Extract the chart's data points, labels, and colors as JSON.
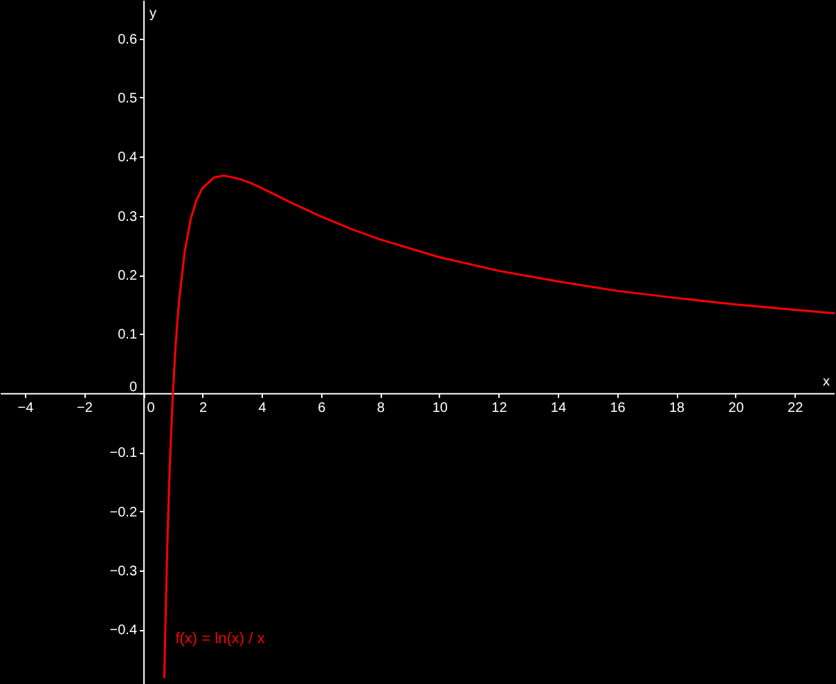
{
  "chart_data": {
    "type": "line",
    "xlabel": "x",
    "ylabel": "y",
    "x": [
      0.71,
      0.72,
      0.75,
      0.8,
      0.85,
      0.9,
      1,
      1.1,
      1.2,
      1.4,
      1.6,
      1.8,
      2,
      2.4,
      2.718,
      3.2,
      3.6,
      4,
      5,
      6,
      7,
      8,
      10,
      12,
      14,
      16,
      18,
      20,
      22,
      23.35
    ],
    "series": [
      {
        "name": "f(x) = ln(x) / x",
        "color": "#ff0000",
        "values": [
          -0.482,
          -0.456,
          -0.384,
          -0.279,
          -0.191,
          -0.117,
          0,
          0.087,
          0.152,
          0.24,
          0.294,
          0.327,
          0.347,
          0.365,
          0.368,
          0.363,
          0.356,
          0.347,
          0.322,
          0.299,
          0.278,
          0.26,
          0.23,
          0.207,
          0.189,
          0.173,
          0.161,
          0.15,
          0.141,
          0.135
        ]
      }
    ],
    "xlim": [
      -4.84,
      23.35
    ],
    "ylim": [
      -0.492,
      0.665
    ],
    "xticks": [
      -4,
      -2,
      0,
      2,
      4,
      6,
      8,
      10,
      12,
      14,
      16,
      18,
      20,
      22
    ],
    "yticks": [
      -0.4,
      -0.3,
      -0.2,
      -0.1,
      0,
      0.1,
      0.2,
      0.3,
      0.4,
      0.5,
      0.6
    ],
    "grid": false,
    "marker": "none",
    "line_style": "solid"
  }
}
